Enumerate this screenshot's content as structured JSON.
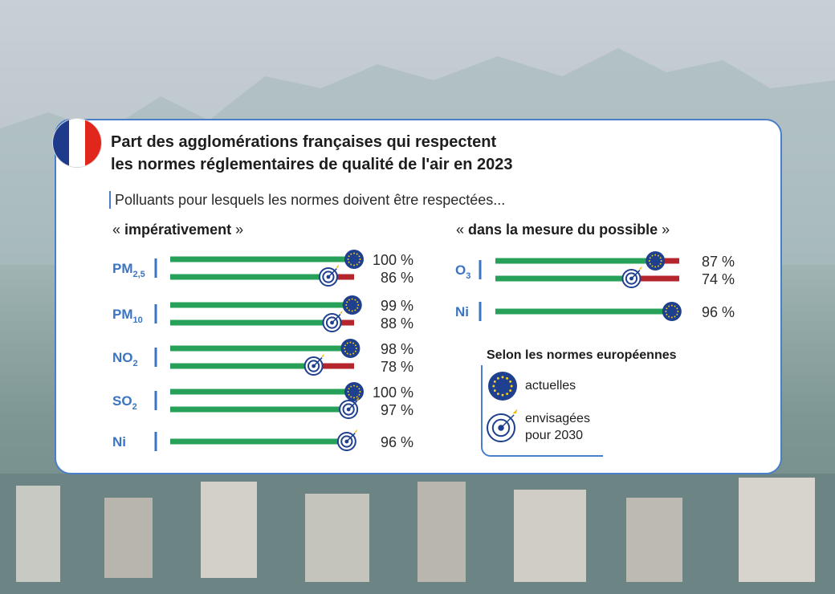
{
  "title": "Part des agglomérations françaises qui respectent les normes réglementaires de qualité de l'air en 2023",
  "title_lines": [
    "Part des agglomérations françaises qui respectent",
    "les normes réglementaires de qualité de l'air en 2023"
  ],
  "subtitle": "Polluants pour lesquels les normes doivent être respectées...",
  "colors": {
    "green": "#27a05a",
    "red": "#b5262c",
    "eu_blue": "#1f3f8f",
    "accent_blue": "#3b74c2",
    "flag_blue": "#1e3a8a",
    "flag_white": "#ffffff",
    "flag_red": "#e1261c"
  },
  "legend": {
    "title": "Selon les normes européennes",
    "items": [
      {
        "icon": "eu-flag-icon",
        "label": "actuelles"
      },
      {
        "icon": "target-icon",
        "label_lines": [
          "envisagées",
          "pour 2030"
        ]
      }
    ]
  },
  "chart_data": [
    {
      "type": "bar",
      "group_title_prefix": "« ",
      "group_title": "impérativement",
      "group_title_suffix": " »",
      "xlim": [
        0,
        100
      ],
      "pollutants": [
        {
          "name": "PM",
          "sub": "2,5",
          "bars": [
            {
              "norm": "actuelles",
              "value": 100,
              "label": "100 %"
            },
            {
              "norm": "2030",
              "value": 86,
              "label": "86 %"
            }
          ]
        },
        {
          "name": "PM",
          "sub": "10",
          "bars": [
            {
              "norm": "actuelles",
              "value": 99,
              "label": "99 %"
            },
            {
              "norm": "2030",
              "value": 88,
              "label": "88 %"
            }
          ]
        },
        {
          "name": "NO",
          "sub": "2",
          "bars": [
            {
              "norm": "actuelles",
              "value": 98,
              "label": "98 %"
            },
            {
              "norm": "2030",
              "value": 78,
              "label": "78 %"
            }
          ]
        },
        {
          "name": "SO",
          "sub": "2",
          "bars": [
            {
              "norm": "actuelles",
              "value": 100,
              "label": "100 %"
            },
            {
              "norm": "2030",
              "value": 97,
              "label": "97 %"
            }
          ]
        },
        {
          "name": "Ni",
          "sub": "",
          "bars": [
            {
              "norm": "2030",
              "value": 96,
              "label": "96 %"
            }
          ]
        }
      ]
    },
    {
      "type": "bar",
      "group_title_prefix": "« ",
      "group_title": "dans la mesure du possible",
      "group_title_suffix": " »",
      "xlim": [
        0,
        100
      ],
      "pollutants": [
        {
          "name": "O",
          "sub": "3",
          "bars": [
            {
              "norm": "actuelles",
              "value": 87,
              "label": "87 %"
            },
            {
              "norm": "2030",
              "value": 74,
              "label": "74 %"
            }
          ]
        },
        {
          "name": "Ni",
          "sub": "",
          "bars": [
            {
              "norm": "actuelles",
              "value": 96,
              "label": "96 %"
            }
          ]
        }
      ]
    }
  ]
}
